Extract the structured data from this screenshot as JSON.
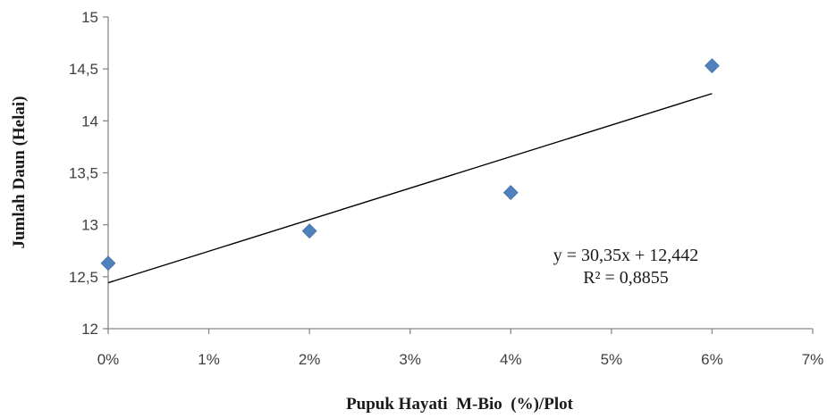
{
  "chart_data": {
    "type": "scatter",
    "xlabel": "Pupuk Hayati  M-Bio  (%)/Plot",
    "ylabel": "Jumlah Daun (Helai)",
    "xlim": [
      0,
      0.07
    ],
    "ylim": [
      12,
      15
    ],
    "x_ticks": [
      0,
      0.01,
      0.02,
      0.03,
      0.04,
      0.05,
      0.06,
      0.07
    ],
    "x_tick_labels": [
      "0%",
      "1%",
      "2%",
      "3%",
      "4%",
      "5%",
      "6%",
      "7%"
    ],
    "y_ticks": [
      12,
      12.5,
      13,
      13.5,
      14,
      14.5,
      15
    ],
    "y_tick_labels": [
      "12",
      "12,5",
      "13",
      "13,5",
      "14",
      "14,5",
      "15"
    ],
    "grid": false,
    "series": [
      {
        "x": [
          0,
          0.02,
          0.04,
          0.06
        ],
        "y": [
          12.63,
          12.94,
          13.31,
          14.53
        ],
        "marker": "diamond",
        "color": "#4f81bd"
      }
    ],
    "trendline": {
      "type": "linear",
      "slope": 30.35,
      "intercept": 12.442,
      "x_range": [
        0,
        0.06
      ],
      "color": "#000000",
      "equation": "y = 30,35x + 12,442",
      "r_squared": "R² = 0,8855"
    },
    "axis_color": "#898989"
  }
}
